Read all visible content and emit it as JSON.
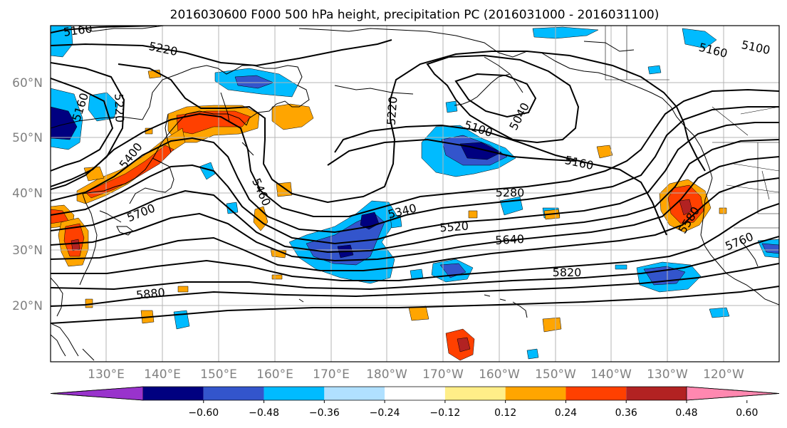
{
  "title": "2016030600 F000 500 hPa height, precipitation PC (2016031000 - 2016031100)",
  "latitude_ticks": [
    "20°N",
    "30°N",
    "40°N",
    "50°N",
    "60°N"
  ],
  "longitude_ticks": [
    "130°E",
    "140°E",
    "150°E",
    "160°E",
    "170°E",
    "180°W",
    "170°W",
    "160°W",
    "150°W",
    "140°W",
    "130°W",
    "120°W"
  ],
  "colorbar": {
    "tick_labels": [
      "−0.60",
      "−0.48",
      "−0.36",
      "−0.24",
      "−0.12",
      "0.12",
      "0.24",
      "0.36",
      "0.48",
      "0.60"
    ],
    "under_color": "#9933cc",
    "over_color": "#ff88b0",
    "bin_colors": [
      "#000080",
      "#3355cc",
      "#00bbff",
      "#b0e0ff",
      "#ffffff",
      "#ffee88",
      "#ffa500",
      "#ff4000",
      "#b22222"
    ]
  },
  "contour_labels": [
    "5160",
    "5220",
    "5160",
    "5220",
    "5400",
    "5220",
    "5040",
    "5100",
    "5160",
    "5160",
    "5100",
    "5460",
    "5340",
    "5280",
    "5520",
    "5640",
    "5580",
    "5700",
    "5820",
    "5880",
    "5760"
  ],
  "colors": {
    "land_outline": "#000000",
    "grid": "#b4b4b4",
    "contour": "#000000",
    "tick_label": "#808080"
  }
}
